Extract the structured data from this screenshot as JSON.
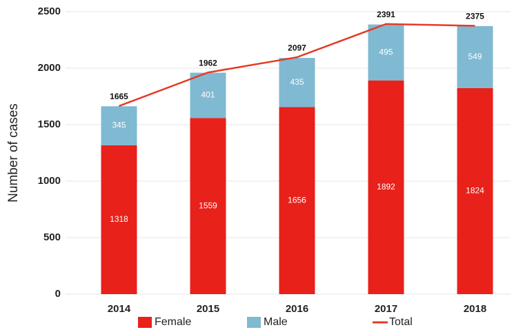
{
  "chart_data": {
    "type": "bar",
    "stacked": true,
    "y_label": "Number of cases",
    "categories": [
      "2014",
      "2015",
      "2016",
      "2017",
      "2018"
    ],
    "series": [
      {
        "name": "Female",
        "color": "#e8211b",
        "values": [
          1318,
          1559,
          1656,
          1892,
          1824
        ]
      },
      {
        "name": "Male",
        "color": "#80b9d2",
        "values": [
          345,
          401,
          435,
          495,
          549
        ]
      },
      {
        "name": "Total",
        "color": "#e63a24",
        "type": "line",
        "values": [
          1665,
          1962,
          2097,
          2391,
          2375
        ]
      }
    ],
    "ylim": [
      0,
      2500
    ],
    "yticks": [
      0,
      500,
      1000,
      1500,
      2000,
      2500
    ],
    "grid": true,
    "legend": "bottom"
  }
}
